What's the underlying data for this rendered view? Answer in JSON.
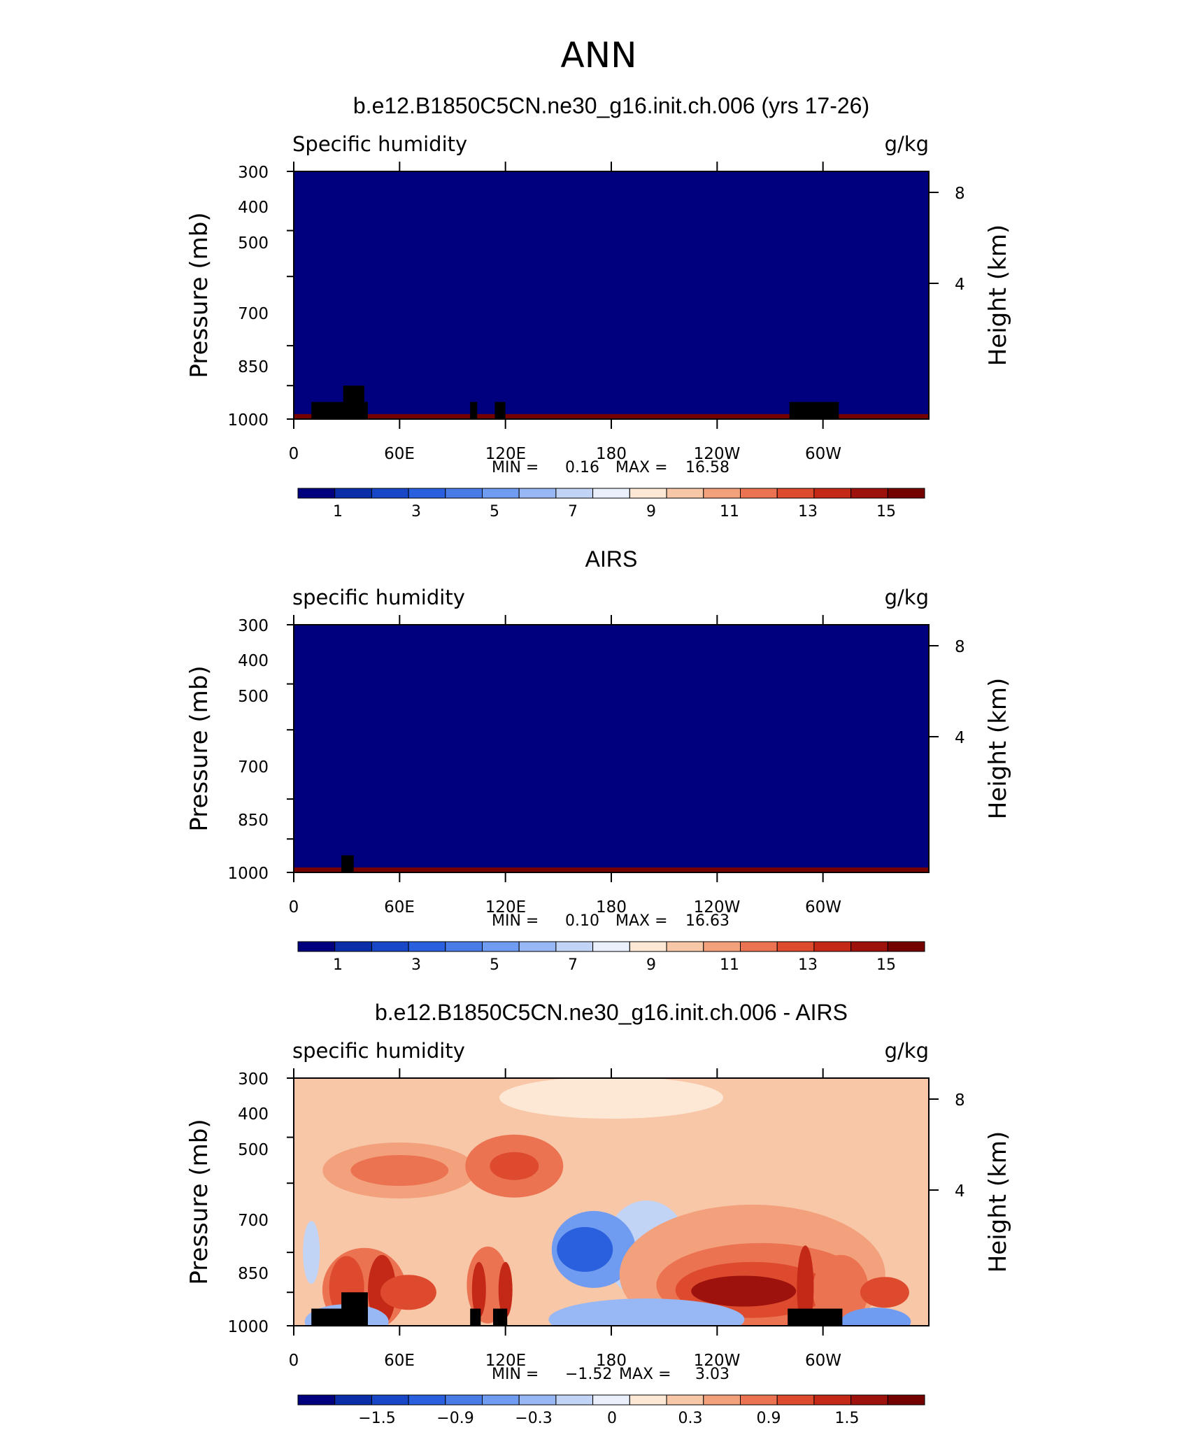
{
  "figure": {
    "title": "ANN"
  },
  "colors": {
    "abs_levels": [
      "#00007f",
      "#0a2ea8",
      "#1747c6",
      "#2a5fdd",
      "#4a7ce8",
      "#6f9bf0",
      "#97b8f4",
      "#c1d4f6",
      "#eaf0fb",
      "#fde8d6",
      "#f8c7a8",
      "#f3a17d",
      "#ec7352",
      "#de4a2d",
      "#c42918",
      "#9e120e",
      "#740000"
    ],
    "diff_levels": [
      "#00007f",
      "#0a2ea8",
      "#1747c6",
      "#2a5fdd",
      "#4a7ce8",
      "#6f9bf0",
      "#97b8f4",
      "#c1d4f6",
      "#eaf0fb",
      "#fde8d6",
      "#f8c7a8",
      "#f3a17d",
      "#ec7352",
      "#de4a2d",
      "#c42918",
      "#9e120e",
      "#740000"
    ],
    "land_mask": "#000000"
  },
  "chart_data": [
    {
      "type": "heatmap",
      "title": "b.e12.B1850C5CN.ne30_g16.init.ch.006 (yrs 17-26)",
      "field_label": "Specific humidity",
      "units": "g/kg",
      "ylabel": "Pressure (mb)",
      "ylabel_right": "Height (km)",
      "x_ticklabels": [
        "0",
        "60E",
        "120E",
        "180",
        "120W",
        "60W"
      ],
      "x_ticks_deg": [
        0,
        60,
        120,
        180,
        240,
        300
      ],
      "xlim_deg": [
        0,
        360
      ],
      "y_ticklabels": [
        "300",
        "400",
        "500",
        "700",
        "850",
        "1000"
      ],
      "ylim": [
        1000,
        300
      ],
      "yscale": "log",
      "y_right_ticklabels": [
        "8",
        "4"
      ],
      "min_label": "MIN =",
      "min_value": "0.16",
      "max_label": "MAX =",
      "max_value": "16.58",
      "colorbar_labels": [
        "1",
        "3",
        "5",
        "7",
        "9",
        "11",
        "13",
        "15"
      ],
      "contour_levels": [
        0.5,
        1,
        2,
        3,
        4,
        5,
        6,
        7,
        8,
        9,
        10,
        11,
        12,
        13,
        14,
        15,
        16
      ]
    },
    {
      "type": "heatmap",
      "title": "AIRS",
      "field_label": "specific humidity",
      "units": "g/kg",
      "ylabel": "Pressure (mb)",
      "ylabel_right": "Height (km)",
      "x_ticklabels": [
        "0",
        "60E",
        "120E",
        "180",
        "120W",
        "60W"
      ],
      "x_ticks_deg": [
        0,
        60,
        120,
        180,
        240,
        300
      ],
      "xlim_deg": [
        0,
        360
      ],
      "y_ticklabels": [
        "300",
        "400",
        "500",
        "700",
        "850",
        "1000"
      ],
      "ylim": [
        1000,
        300
      ],
      "yscale": "log",
      "y_right_ticklabels": [
        "8",
        "4"
      ],
      "min_label": "MIN =",
      "min_value": "0.10",
      "max_label": "MAX =",
      "max_value": "16.63",
      "colorbar_labels": [
        "1",
        "3",
        "5",
        "7",
        "9",
        "11",
        "13",
        "15"
      ],
      "contour_levels": [
        0.5,
        1,
        2,
        3,
        4,
        5,
        6,
        7,
        8,
        9,
        10,
        11,
        12,
        13,
        14,
        15,
        16
      ]
    },
    {
      "type": "heatmap",
      "title": "b.e12.B1850C5CN.ne30_g16.init.ch.006 - AIRS",
      "field_label": "specific humidity",
      "units": "g/kg",
      "ylabel": "Pressure (mb)",
      "ylabel_right": "Height (km)",
      "x_ticklabels": [
        "0",
        "60E",
        "120E",
        "180",
        "120W",
        "60W"
      ],
      "x_ticks_deg": [
        0,
        60,
        120,
        180,
        240,
        300
      ],
      "xlim_deg": [
        0,
        360
      ],
      "y_ticklabels": [
        "300",
        "400",
        "500",
        "700",
        "850",
        "1000"
      ],
      "ylim": [
        1000,
        300
      ],
      "yscale": "log",
      "y_right_ticklabels": [
        "8",
        "4"
      ],
      "min_label": "MIN =",
      "min_value": "−1.52",
      "max_label": "MAX =",
      "max_value": "3.03",
      "colorbar_labels": [
        "−1.5",
        "−0.9",
        "−0.3",
        "0",
        "0.3",
        "0.9",
        "1.5"
      ],
      "contour_levels": [
        -2.1,
        -1.8,
        -1.5,
        -1.2,
        -0.9,
        -0.6,
        -0.3,
        -0.1,
        0,
        0.1,
        0.3,
        0.6,
        0.9,
        1.2,
        1.5,
        1.8,
        2.1
      ]
    }
  ]
}
